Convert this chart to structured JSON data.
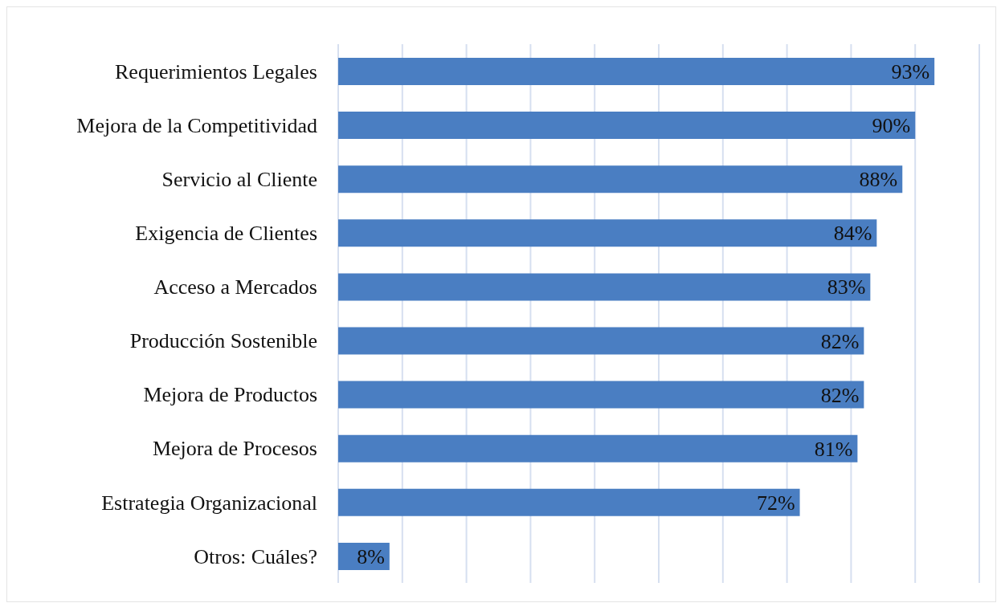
{
  "chart_data": {
    "type": "bar",
    "orientation": "horizontal",
    "categories": [
      "Requerimientos Legales",
      "Mejora de la Competitividad",
      "Servicio al Cliente",
      "Exigencia de Clientes",
      "Acceso a Mercados",
      "Producción Sostenible",
      "Mejora de Productos",
      "Mejora de Procesos",
      "Estrategia Organizacional",
      "Otros: Cuáles?"
    ],
    "values": [
      93,
      90,
      88,
      84,
      83,
      82,
      82,
      81,
      72,
      8
    ],
    "value_labels": [
      "93%",
      "90%",
      "88%",
      "84%",
      "83%",
      "82%",
      "82%",
      "81%",
      "72%",
      "8%"
    ],
    "color": "#4a7ec2",
    "xlim": [
      0,
      100
    ],
    "xticks": [
      {
        "value": 0,
        "label": null
      },
      {
        "value": 10,
        "label": null
      },
      {
        "value": 20,
        "label": null
      },
      {
        "value": 30,
        "label": null
      },
      {
        "value": 40,
        "label": null
      },
      {
        "value": 50,
        "label": null
      },
      {
        "value": 60,
        "label": null
      },
      {
        "value": 70,
        "label": null
      },
      {
        "value": 80,
        "label": null
      },
      {
        "value": 90,
        "label": null
      },
      {
        "value": 100,
        "label": null
      }
    ],
    "grid": "x",
    "tick_labels": "y",
    "legend": false
  }
}
